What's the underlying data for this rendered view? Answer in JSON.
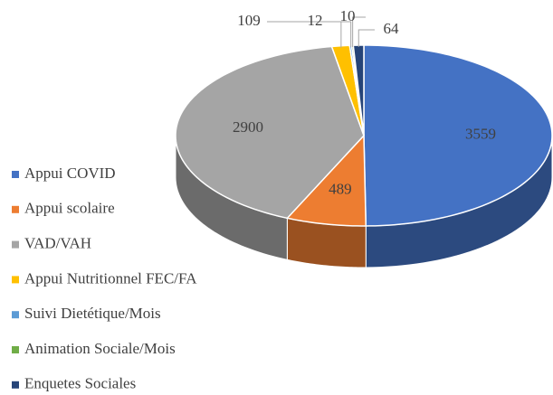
{
  "chart_data": {
    "type": "pie3d",
    "categories": [
      "Appui COVID",
      "Appui scolaire",
      "VAD/VAH",
      "Appui Nutritionnel FEC/FA",
      "Suivi Dietétique/Mois",
      "Animation Sociale/Mois",
      "Enquetes Sociales"
    ],
    "values": [
      3559,
      489,
      2900,
      109,
      12,
      10,
      64
    ],
    "colors": [
      "#4472c4",
      "#ed7d31",
      "#a5a5a5",
      "#ffc000",
      "#5b9bd5",
      "#70ad47",
      "#264478"
    ],
    "legend": "left"
  }
}
